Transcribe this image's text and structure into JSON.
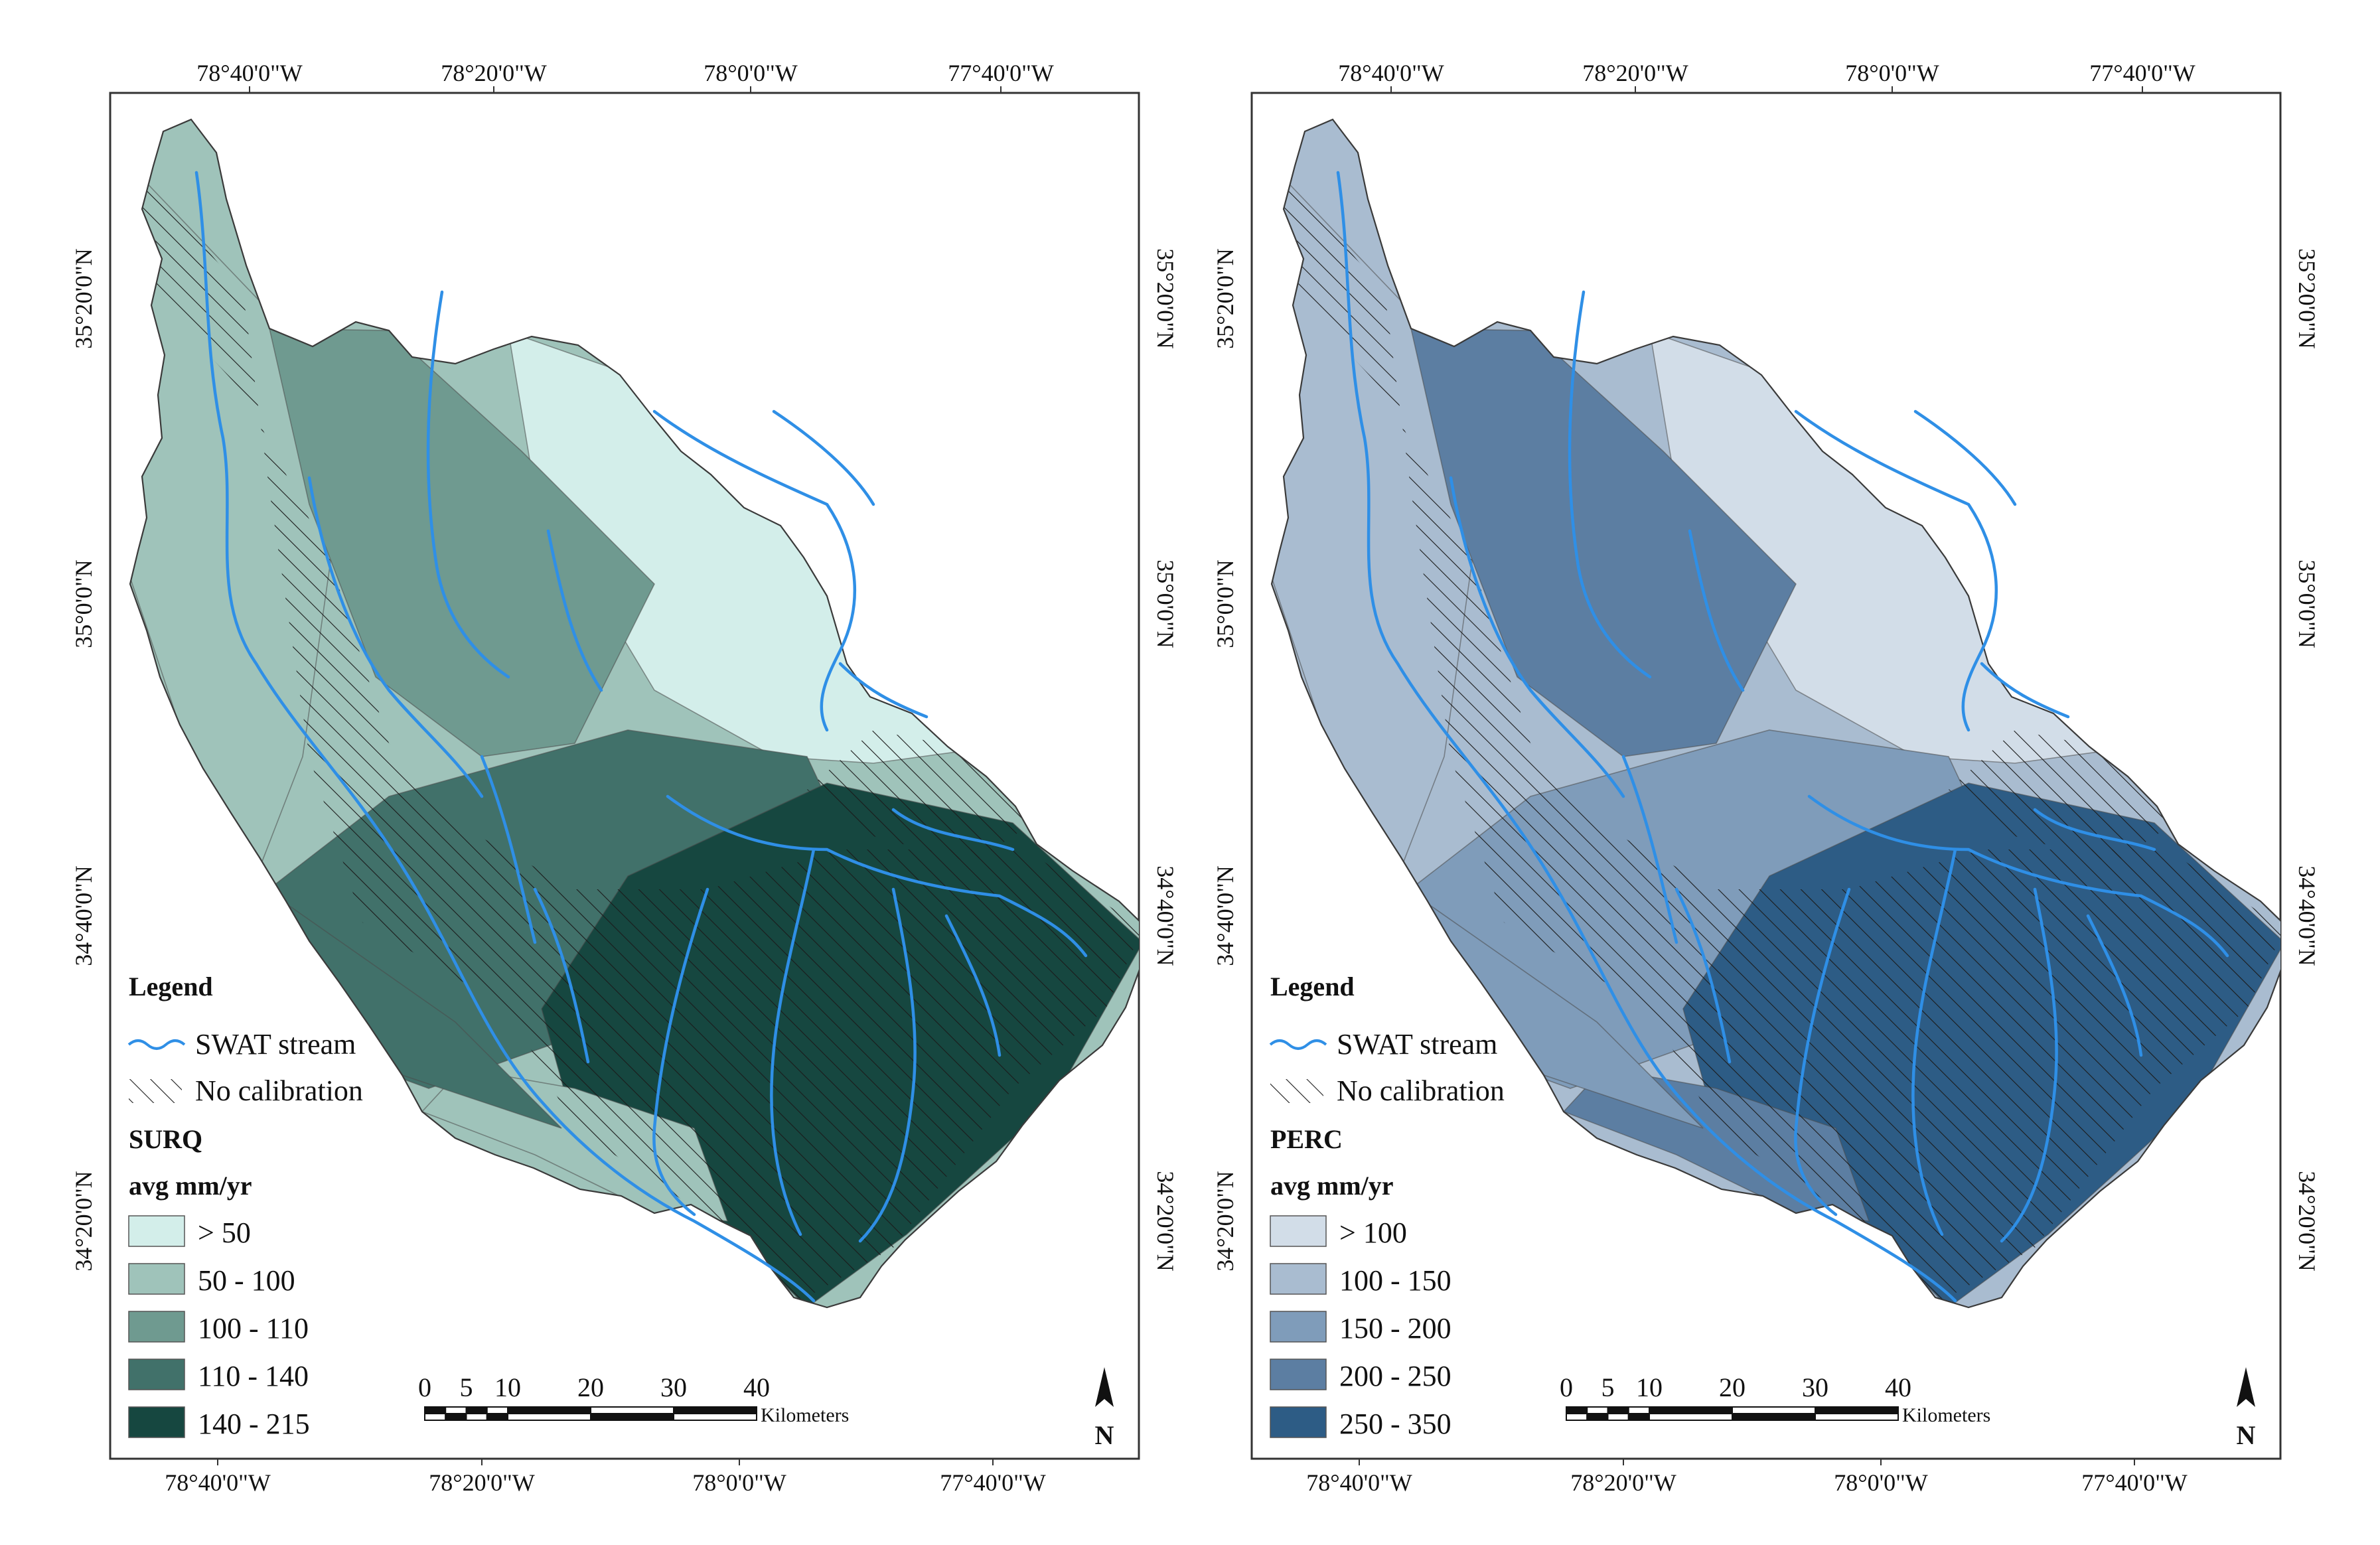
{
  "hatch_color": "#1b1b1b",
  "stream_color": "#2f8fe6",
  "maps": [
    {
      "id": "surq",
      "top_ticks": [
        "78°40'0\"W",
        "78°20'0\"W",
        "78°0'0\"W",
        "77°40'0\"W"
      ],
      "bottom_ticks": [
        "78°40'0\"W",
        "78°20'0\"W",
        "78°0'0\"W",
        "77°40'0\"W"
      ],
      "left_ticks": [
        "35°20'0\"N",
        "35°0'0\"N",
        "34°40'0\"N",
        "34°20'0\"N"
      ],
      "right_ticks": [
        "35°20'0\"N",
        "35°0'0\"N",
        "34°40'0\"N",
        "34°20'0\"N"
      ],
      "legend": {
        "title": "Legend",
        "stream_label": "SWAT stream",
        "hatch_label": "No calibration",
        "var_name": "SURQ",
        "unit": "avg mm/yr",
        "classes": [
          {
            "label": "> 50",
            "color": "#d3eeea"
          },
          {
            "label": "50 - 100",
            "color": "#9fc3ba"
          },
          {
            "label": "100 - 110",
            "color": "#6f9a90"
          },
          {
            "label": "110 - 140",
            "color": "#41716a"
          },
          {
            "label": "140 - 215",
            "color": "#164740"
          }
        ]
      }
    },
    {
      "id": "perc",
      "top_ticks": [
        "78°40'0\"W",
        "78°20'0\"W",
        "78°0'0\"W",
        "77°40'0\"W"
      ],
      "bottom_ticks": [
        "78°40'0\"W",
        "78°20'0\"W",
        "78°0'0\"W",
        "77°40'0\"W"
      ],
      "left_ticks": [
        "35°20'0\"N",
        "35°0'0\"N",
        "34°40'0\"N",
        "34°20'0\"N"
      ],
      "right_ticks": [
        "35°20'0\"N",
        "35°0'0\"N",
        "34°40'0\"N",
        "34°20'0\"N"
      ],
      "legend": {
        "title": "Legend",
        "stream_label": "SWAT stream",
        "hatch_label": "No calibration",
        "var_name": "PERC",
        "unit": "avg mm/yr",
        "classes": [
          {
            "label": "> 100",
            "color": "#d2dde8"
          },
          {
            "label": "100 - 150",
            "color": "#a9bcd0"
          },
          {
            "label": "150 - 200",
            "color": "#7f9cba"
          },
          {
            "label": "200 - 250",
            "color": "#5c7ea2"
          },
          {
            "label": "250 - 350",
            "color": "#2d5c85"
          }
        ]
      }
    }
  ],
  "scalebar": {
    "labels": [
      "0",
      "5",
      "10",
      "20",
      "30",
      "40"
    ],
    "unit": "Kilometers"
  },
  "north_arrow_label": "N",
  "zone_classes": {
    "surq": [
      1,
      0,
      2,
      3,
      4,
      1,
      3
    ],
    "perc": [
      1,
      0,
      3,
      2,
      4,
      3,
      2
    ]
  }
}
